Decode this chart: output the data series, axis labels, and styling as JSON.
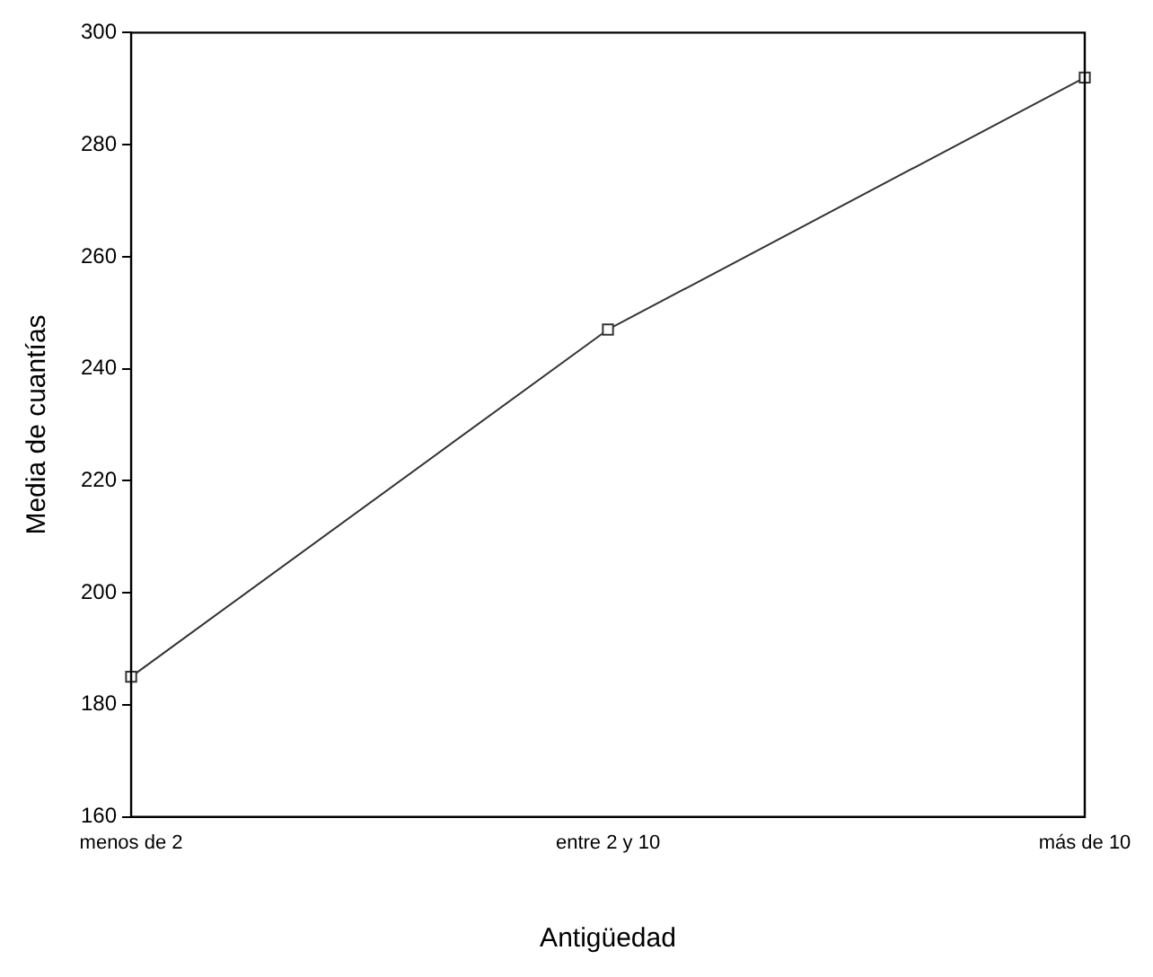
{
  "chart_data": {
    "type": "line",
    "xlabel": "Antigüedad",
    "ylabel": "Media de cuantías",
    "categories": [
      "menos de 2",
      "entre 2 y 10",
      "más de 10"
    ],
    "series": [
      {
        "color": "#333333",
        "values": [
          185,
          247,
          292
        ]
      }
    ],
    "ylim": [
      160,
      300
    ],
    "yticks": [
      160,
      180,
      200,
      220,
      240,
      260,
      280,
      300
    ],
    "grid": false,
    "legend": false,
    "marker": "square",
    "line_style": "solid"
  }
}
